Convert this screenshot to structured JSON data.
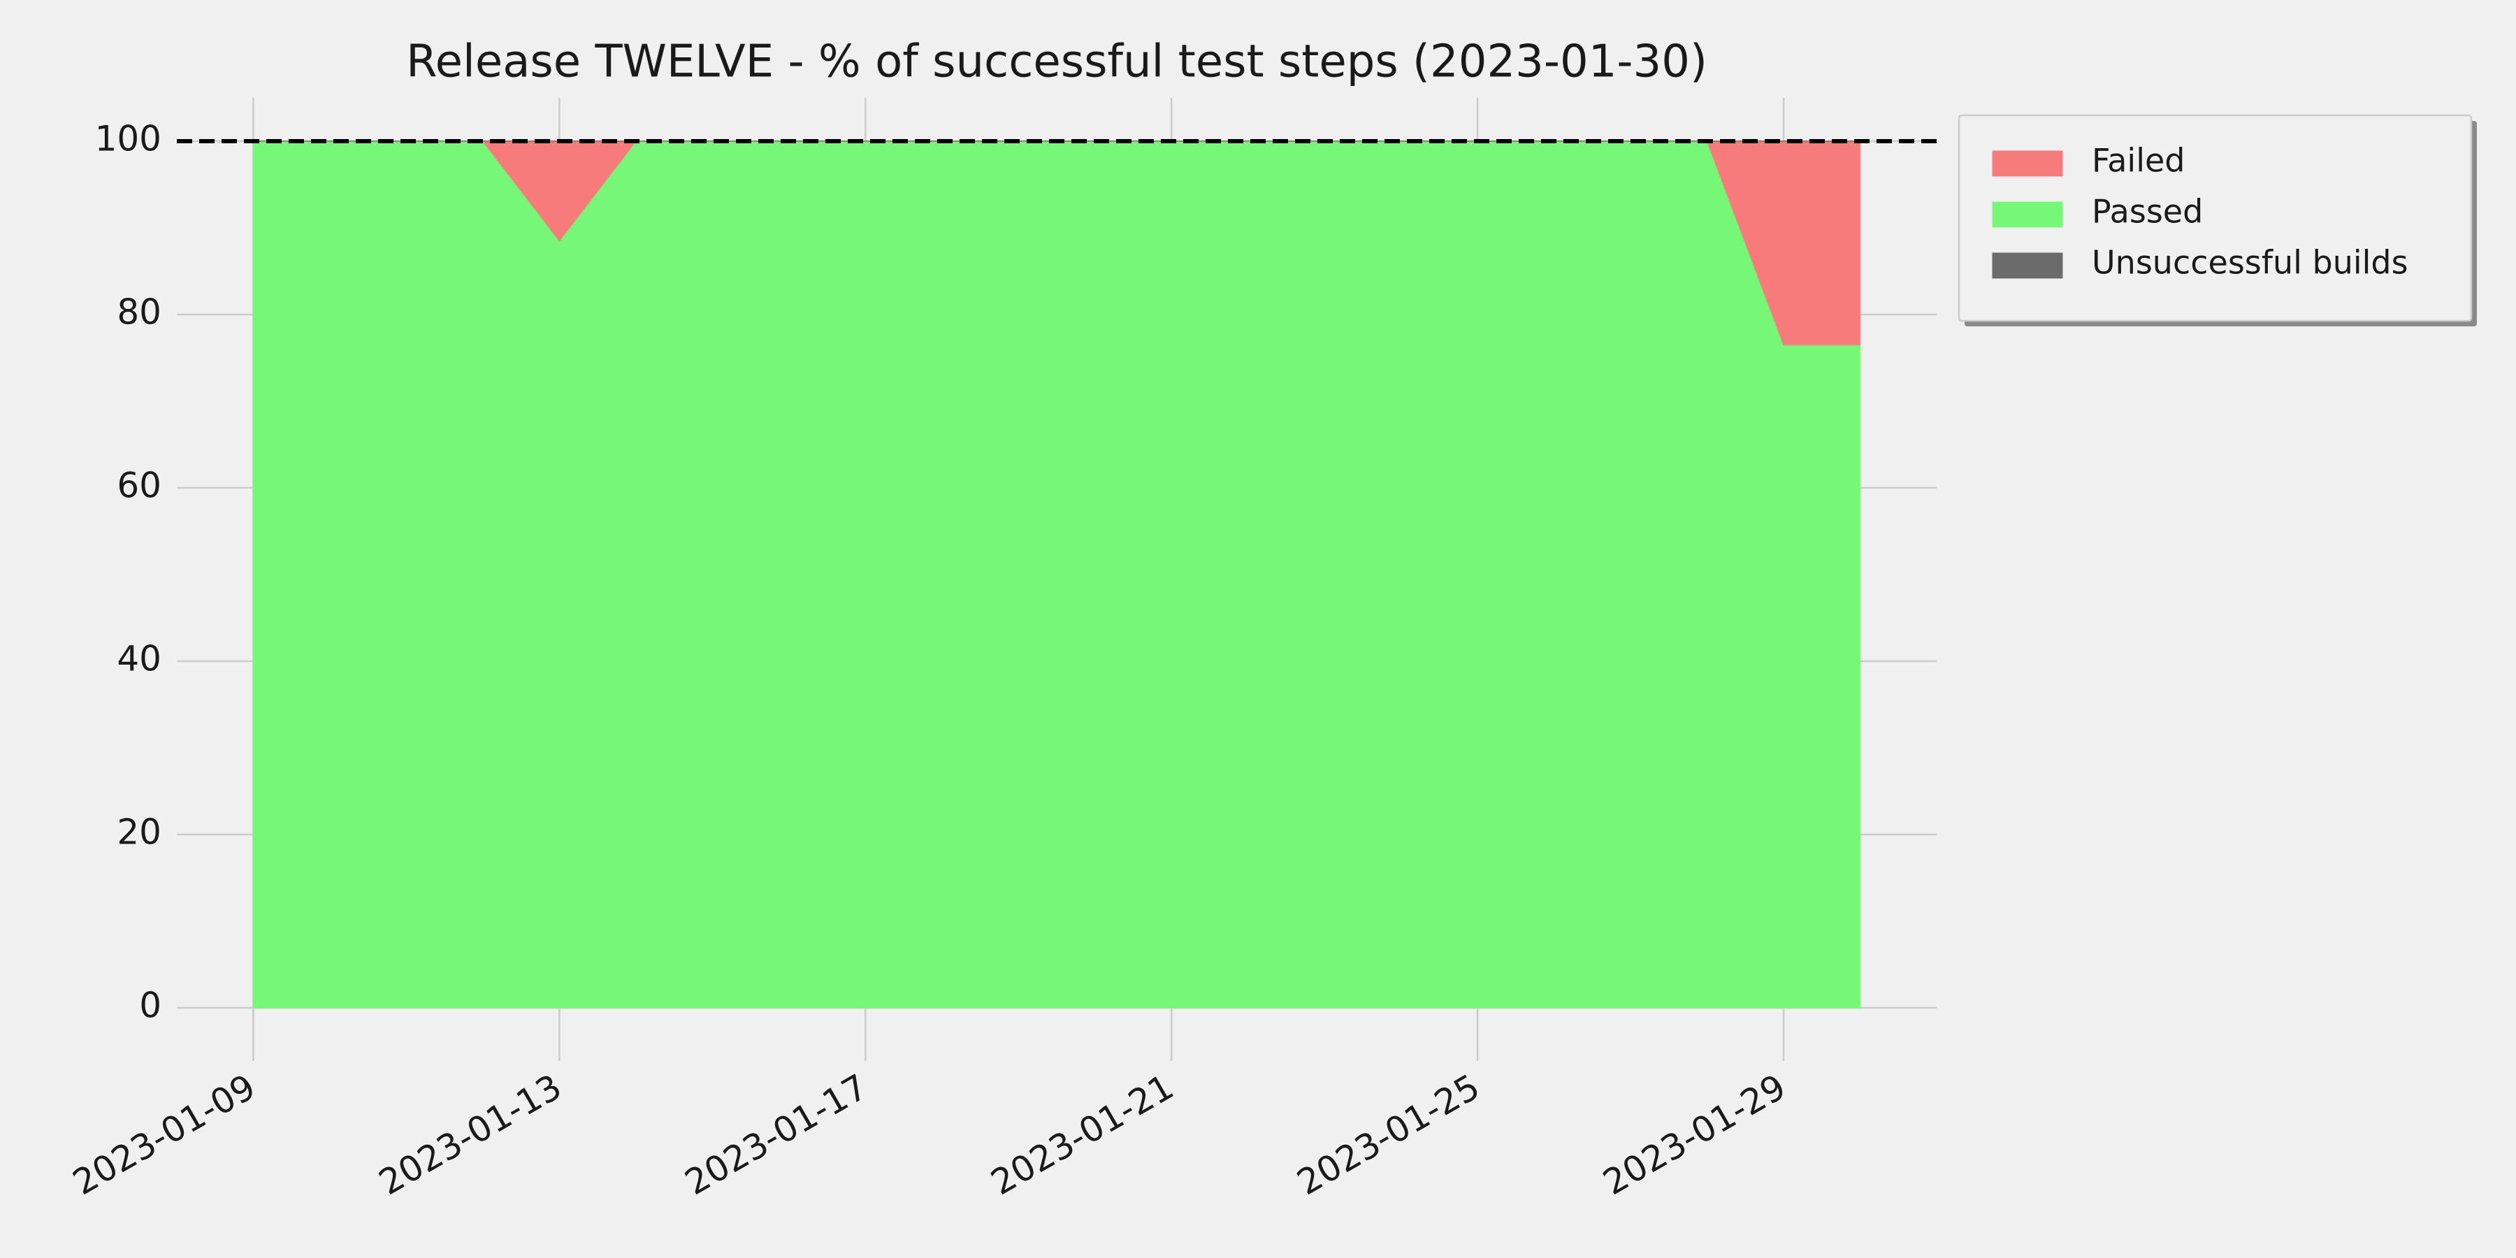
{
  "chart_data": {
    "type": "stacked-area",
    "title": "Release TWELVE - % of successful test steps (2023-01-30)",
    "x": [
      "2023-01-09",
      "2023-01-10",
      "2023-01-11",
      "2023-01-12",
      "2023-01-13",
      "2023-01-14",
      "2023-01-15",
      "2023-01-16",
      "2023-01-17",
      "2023-01-18",
      "2023-01-19",
      "2023-01-20",
      "2023-01-21",
      "2023-01-22",
      "2023-01-23",
      "2023-01-24",
      "2023-01-25",
      "2023-01-26",
      "2023-01-27",
      "2023-01-28",
      "2023-01-29",
      "2023-01-30"
    ],
    "series": [
      {
        "name": "Passed",
        "color": "#77f777",
        "values": [
          100,
          100,
          100,
          100,
          88.5,
          100,
          100,
          100,
          100,
          100,
          100,
          100,
          100,
          100,
          100,
          100,
          100,
          100,
          100,
          100,
          76.5,
          76.5
        ]
      },
      {
        "name": "Failed",
        "color": "#f77b7b",
        "values": [
          0,
          0,
          0,
          0,
          11.5,
          0,
          0,
          0,
          0,
          0,
          0,
          0,
          0,
          0,
          0,
          0,
          0,
          0,
          0,
          0,
          23.5,
          23.5
        ]
      },
      {
        "name": "Unsuccessful builds",
        "color": "#6b6b6b",
        "values": [
          0,
          0,
          0,
          0,
          0,
          0,
          0,
          0,
          0,
          0,
          0,
          0,
          0,
          0,
          0,
          0,
          0,
          0,
          0,
          0,
          0,
          0
        ]
      }
    ],
    "legend_order": [
      1,
      0,
      2
    ],
    "legend_position": "upper right outside",
    "xlim": [
      "2023-01-08",
      "2023-01-31"
    ],
    "xticks": [
      "2023-01-09",
      "2023-01-13",
      "2023-01-17",
      "2023-01-21",
      "2023-01-25",
      "2023-01-29"
    ],
    "ylim": [
      -5,
      105
    ],
    "yticks": [
      0,
      20,
      40,
      60,
      80,
      100
    ],
    "reference_line": 100,
    "grid": true
  }
}
